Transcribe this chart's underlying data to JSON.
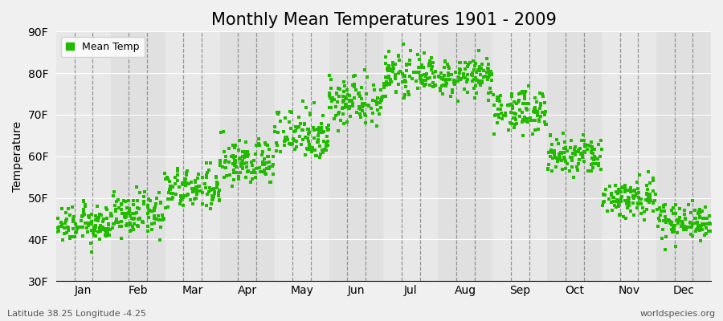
{
  "title": "Monthly Mean Temperatures 1901 - 2009",
  "ylabel": "Temperature",
  "xlabel_bottom_left": "Latitude 38.25 Longitude -4.25",
  "xlabel_bottom_right": "worldspecies.org",
  "legend_label": "Mean Temp",
  "dot_color": "#22bb00",
  "background_color": "#f0f0f0",
  "plot_bg_color": "#e8e8e8",
  "ylim": [
    30,
    90
  ],
  "yticks": [
    30,
    40,
    50,
    60,
    70,
    80,
    90
  ],
  "ytick_labels": [
    "30F",
    "40F",
    "50F",
    "60F",
    "70F",
    "80F",
    "90F"
  ],
  "months": [
    "Jan",
    "Feb",
    "Mar",
    "Apr",
    "May",
    "Jun",
    "Jul",
    "Aug",
    "Sep",
    "Oct",
    "Nov",
    "Dec"
  ],
  "month_mean_temps_F": [
    43.5,
    46.0,
    52.0,
    58.5,
    65.5,
    73.5,
    79.5,
    79.0,
    71.0,
    60.0,
    50.0,
    44.5
  ],
  "month_std_F": [
    2.2,
    2.5,
    2.5,
    2.8,
    3.2,
    3.0,
    2.2,
    2.2,
    2.5,
    2.5,
    2.5,
    2.2
  ],
  "n_years": 109,
  "marker_size": 5,
  "title_fontsize": 15,
  "axis_fontsize": 10,
  "tick_fontsize": 10,
  "legend_fontsize": 9
}
